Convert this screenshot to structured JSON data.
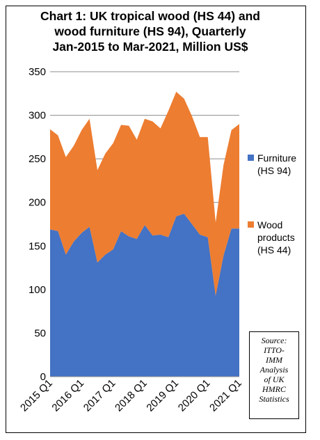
{
  "chart_data": {
    "type": "area",
    "title_lines": [
      "Chart 1: UK tropical wood (HS 44) and",
      "wood furniture (HS 94), Quarterly",
      "Jan-2015 to Mar-2021, Million US$"
    ],
    "ylim": [
      0,
      350
    ],
    "yticks": [
      0,
      50,
      100,
      150,
      200,
      250,
      300,
      350
    ],
    "x_tick_labels": [
      "2015 Q1",
      "2016 Q1",
      "2017 Q1",
      "2018 Q1",
      "2019 Q1",
      "2020 Q1",
      "2021 Q1"
    ],
    "stacked": true,
    "grid": true,
    "legend_position": "right",
    "series": [
      {
        "name_lines": [
          "Furniture",
          "(HS 94)"
        ],
        "color": "#4472C4",
        "values": [
          169,
          167,
          140,
          155,
          165,
          172,
          131,
          140,
          146,
          167,
          161,
          158,
          174,
          162,
          163,
          160,
          184,
          187,
          175,
          163,
          160,
          93,
          139,
          170,
          170
        ]
      },
      {
        "name_lines": [
          "Wood",
          "products",
          "(HS 44)"
        ],
        "color": "#ED7D31",
        "values": [
          115,
          110,
          112,
          110,
          118,
          124,
          106,
          116,
          122,
          122,
          127,
          114,
          122,
          131,
          122,
          145,
          143,
          132,
          124,
          112,
          115,
          84,
          104,
          113,
          120
        ]
      }
    ]
  },
  "source_lines": [
    "Source:",
    "ITTO-",
    "IMM",
    "Analysis",
    "of UK",
    "HMRC",
    "Statistics"
  ]
}
